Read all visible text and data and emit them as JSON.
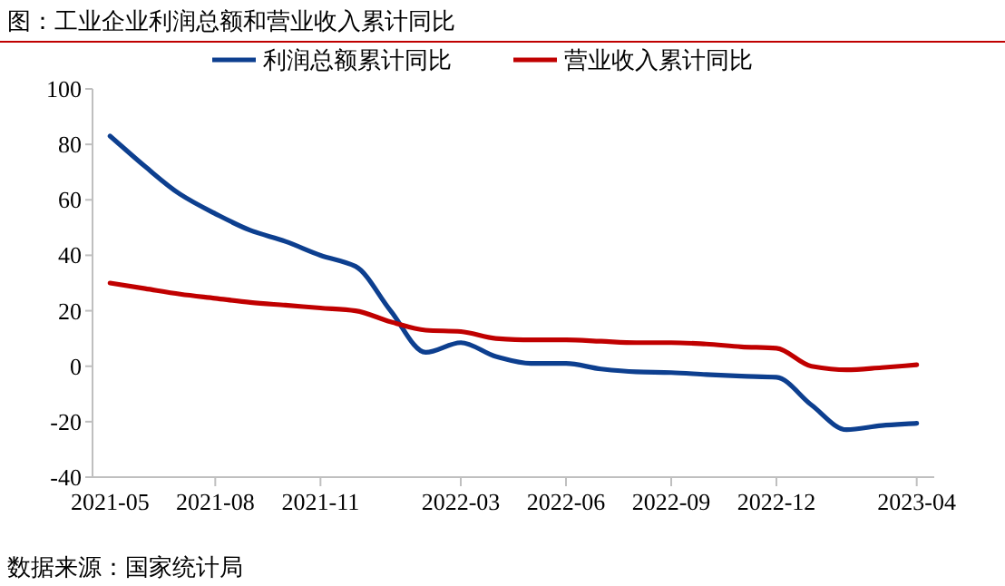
{
  "chart_data": {
    "type": "line",
    "title": "图：工业企业利润总额和营业收入累计同比",
    "categories": [
      "2021-05",
      null,
      null,
      "2021-08",
      null,
      null,
      "2021-11",
      null,
      null,
      null,
      "2022-03",
      null,
      null,
      "2022-06",
      null,
      null,
      "2022-09",
      null,
      null,
      "2022-12",
      null,
      null,
      null,
      "2023-04"
    ],
    "series": [
      {
        "name": "利润总额累计同比",
        "color": "#0d3f8f",
        "values": [
          83,
          72,
          62,
          55,
          49,
          45,
          40,
          36,
          20,
          5,
          8.5,
          3.5,
          1,
          1,
          -1,
          -2,
          -2.3,
          -3,
          -3.6,
          -4,
          -14,
          -22.9,
          -21.4,
          -20.6
        ]
      },
      {
        "name": "营业收入累计同比",
        "color": "#c00000",
        "values": [
          30,
          28,
          26,
          24.5,
          23,
          22,
          21,
          20,
          16,
          13,
          12.5,
          10,
          9.5,
          9.5,
          9,
          8.5,
          8.5,
          8,
          7,
          6.5,
          0,
          -1.3,
          -0.5,
          0.5
        ]
      }
    ],
    "ylim": [
      -40,
      100
    ],
    "yticks": [
      -40,
      -20,
      0,
      20,
      40,
      60,
      80,
      100
    ],
    "grid": false,
    "legend": "top",
    "annotations": [
      "数据来源：国家统计局"
    ]
  }
}
